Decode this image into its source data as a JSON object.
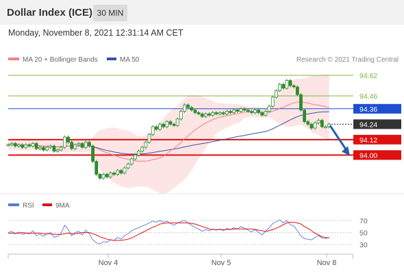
{
  "header": {
    "title": "Dollar Index (ICE)",
    "interval": "30 MIN"
  },
  "datetime": "Monday, November 8, 2021 12:31:14 AM CET",
  "legend": {
    "ma20": "MA 20 + Bollinger Bands",
    "ma50": "MA 50"
  },
  "copyright": "Research © 2021 Trading Central",
  "colors": {
    "ma20": "#f08080",
    "ma50": "#3a4fa0",
    "bollinger_fill": "#fde0e0",
    "candle": "#2e8b2e",
    "resistance": "#7cb342",
    "support": "#dd1111",
    "pivot": "#1e4fd0",
    "current": "#333333",
    "rsi": "#5577dd",
    "rsi_ma": "#dd1111",
    "arrow": "#1f5faa"
  },
  "levels": [
    {
      "value": 94.62,
      "label": "94.62",
      "type": "resistance"
    },
    {
      "value": 94.46,
      "label": "94.46",
      "type": "resistance"
    },
    {
      "value": 94.36,
      "label": "94.36",
      "type": "pivot"
    },
    {
      "value": 94.24,
      "label": "94.24",
      "type": "current"
    },
    {
      "value": 94.12,
      "label": "94.12",
      "type": "support"
    },
    {
      "value": 94.0,
      "label": "94.00",
      "type": "support"
    }
  ],
  "rsi_panel": {
    "legend_rsi": "RSI",
    "legend_ma": "9MA",
    "ticks": [
      "70",
      "50",
      "30"
    ]
  },
  "x_axis": {
    "ticks": [
      "Nov 4",
      "Nov 5",
      "Nov 8"
    ]
  },
  "chart_data": {
    "type": "candlestick",
    "y_range": [
      93.73,
      94.7
    ],
    "close": [
      94.08,
      94.09,
      94.07,
      94.08,
      94.06,
      94.08,
      94.07,
      94.09,
      94.05,
      94.06,
      94.04,
      94.06,
      94.07,
      94.03,
      94.04,
      94.06,
      94.14,
      94.1,
      94.05,
      94.08,
      94.09,
      94.06,
      94.1,
      94.07,
      93.95,
      93.85,
      93.82,
      93.85,
      93.83,
      93.86,
      93.85,
      93.88,
      93.86,
      93.9,
      93.93,
      93.97,
      94.0,
      94.03,
      94.06,
      94.1,
      94.16,
      94.22,
      94.2,
      94.24,
      94.22,
      94.26,
      94.24,
      94.23,
      94.28,
      94.34,
      94.39,
      94.37,
      94.35,
      94.33,
      94.32,
      94.3,
      94.32,
      94.31,
      94.33,
      94.32,
      94.33,
      94.32,
      94.34,
      94.33,
      94.35,
      94.34,
      94.36,
      94.35,
      94.34,
      94.33,
      94.35,
      94.33,
      94.31,
      94.34,
      94.38,
      94.45,
      94.5,
      94.55,
      94.52,
      94.58,
      94.54,
      94.53,
      94.47,
      94.35,
      94.26,
      94.24,
      94.21,
      94.25,
      94.27,
      94.22,
      94.22,
      94.24
    ],
    "rsi": [
      50,
      52,
      48,
      51,
      47,
      49,
      48,
      53,
      45,
      47,
      44,
      48,
      50,
      42,
      44,
      49,
      62,
      55,
      45,
      50,
      52,
      46,
      54,
      48,
      38,
      33,
      31,
      35,
      34,
      38,
      37,
      42,
      39,
      45,
      48,
      53,
      56,
      58,
      61,
      63,
      66,
      69,
      67,
      70,
      67,
      69,
      65,
      62,
      66,
      68,
      70,
      66,
      62,
      58,
      56,
      52,
      55,
      53,
      56,
      54,
      56,
      53,
      57,
      55,
      58,
      56,
      60,
      57,
      54,
      51,
      55,
      50,
      46,
      52,
      58,
      65,
      68,
      71,
      66,
      70,
      63,
      61,
      53,
      44,
      40,
      39,
      38,
      42,
      45,
      41,
      40,
      42
    ],
    "rsi_ma": [
      49,
      49,
      49,
      49,
      50,
      49,
      49,
      49,
      49,
      49,
      48,
      48,
      48,
      47,
      47,
      47,
      48,
      49,
      48,
      48,
      49,
      50,
      50,
      50,
      48,
      46,
      43,
      41,
      39,
      38,
      37,
      37,
      37,
      38,
      39,
      41,
      44,
      47,
      50,
      53,
      56,
      59,
      61,
      64,
      65,
      66,
      66,
      66,
      66,
      66,
      66,
      66,
      65,
      64,
      62,
      60,
      58,
      56,
      55,
      55,
      55,
      55,
      55,
      55,
      56,
      56,
      56,
      56,
      56,
      56,
      55,
      54,
      53,
      52,
      53,
      55,
      57,
      60,
      63,
      66,
      67,
      67,
      66,
      64,
      60,
      57,
      53,
      49,
      46,
      43,
      42,
      41
    ]
  }
}
